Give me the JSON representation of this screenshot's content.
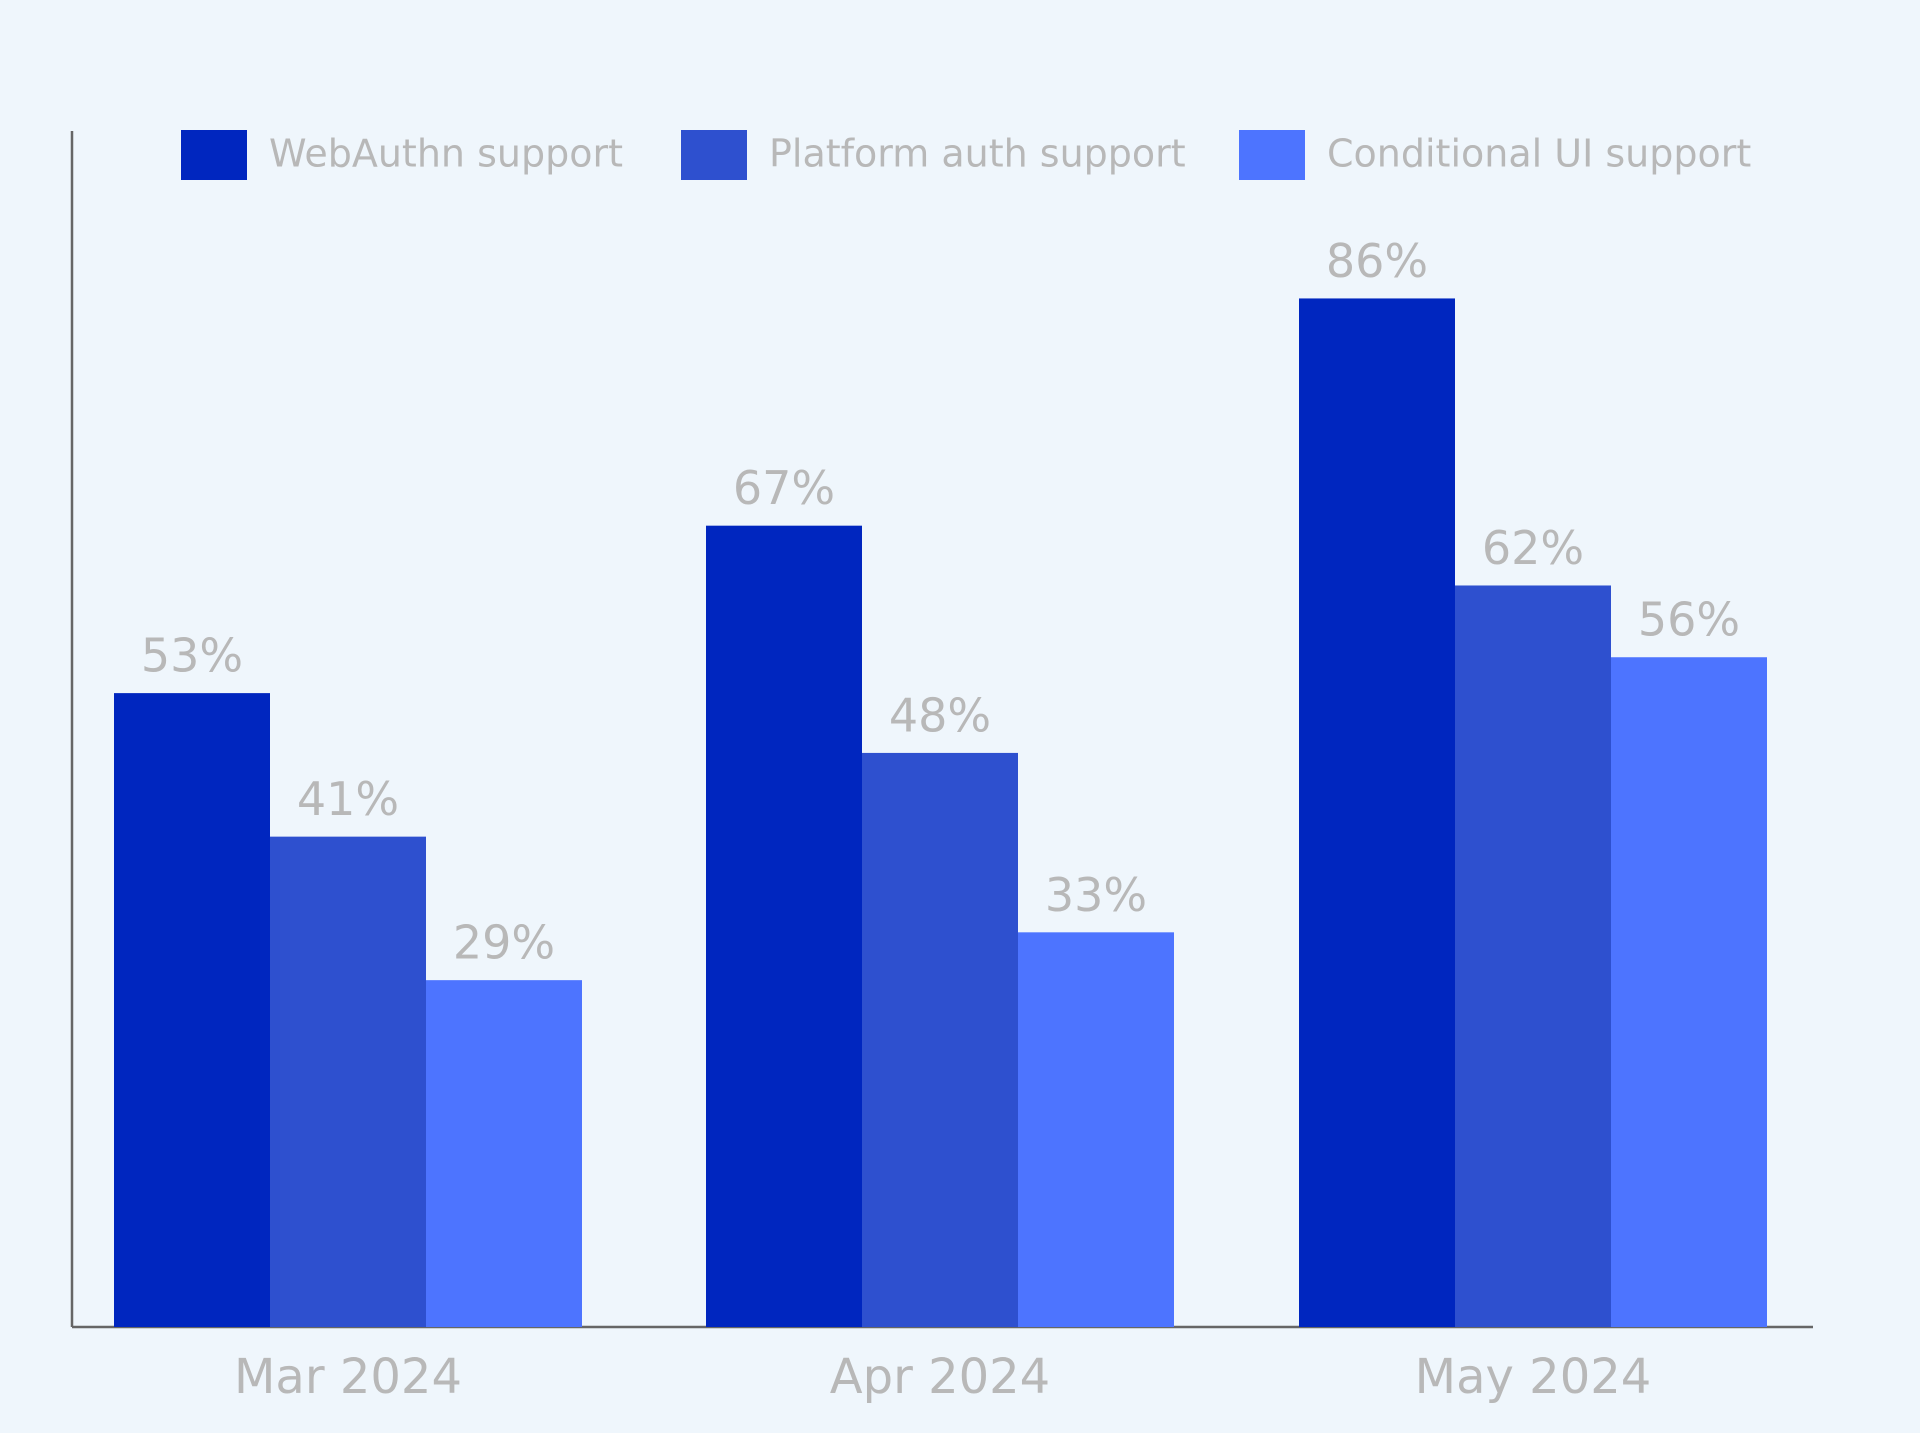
{
  "chart_data": {
    "type": "bar",
    "categories": [
      "Mar 2024",
      "Apr 2024",
      "May 2024"
    ],
    "series": [
      {
        "name": "WebAuthn support",
        "color": "#0026bf",
        "values": [
          53,
          67,
          86
        ],
        "value_labels": [
          "53%",
          "67%",
          "86%"
        ]
      },
      {
        "name": "Platform auth support",
        "color": "#2e50cf",
        "values": [
          41,
          48,
          62
        ],
        "value_labels": [
          "41%",
          "48%",
          "62%"
        ]
      },
      {
        "name": "Conditional UI support",
        "color": "#4d74ff",
        "values": [
          29,
          33,
          56
        ],
        "value_labels": [
          "29%",
          "33%",
          "56%"
        ]
      }
    ],
    "ylim": [
      0,
      100
    ],
    "grid": false,
    "legend": "top"
  }
}
